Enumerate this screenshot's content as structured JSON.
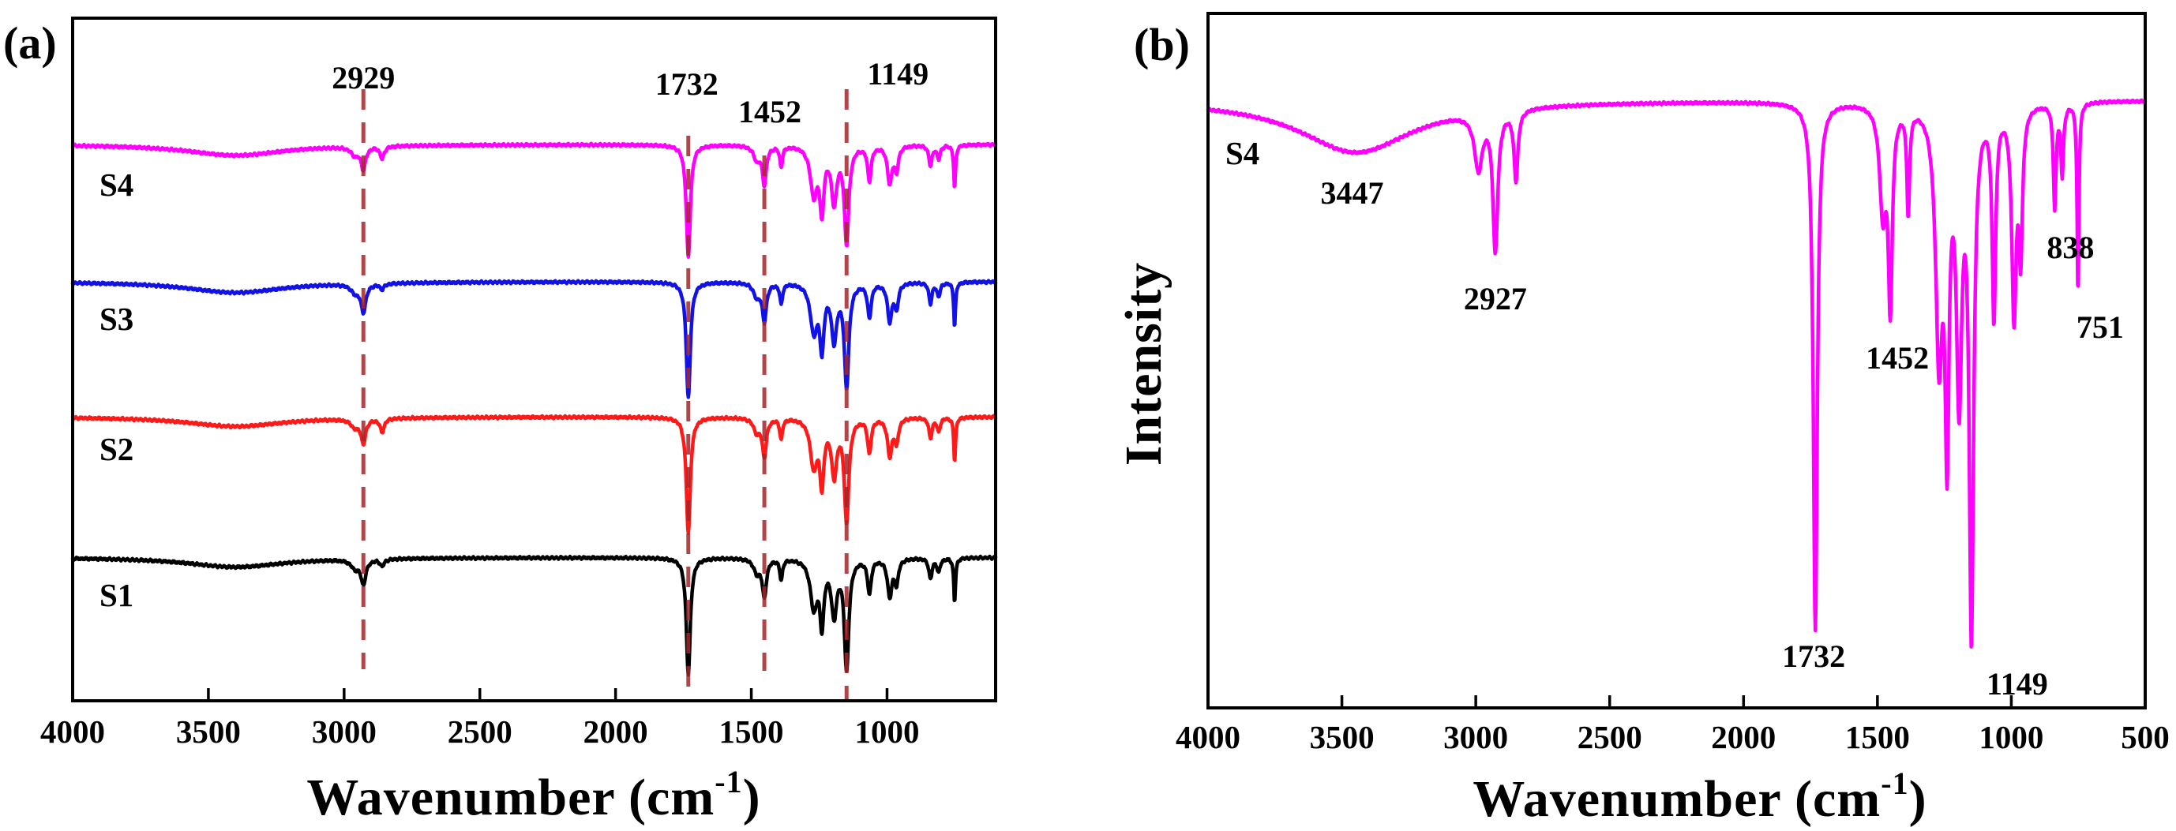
{
  "figure": {
    "panel_labels": [
      "(a)",
      "(b)"
    ]
  },
  "colors": {
    "reference_line": "#a3262a",
    "axis": "#000000"
  },
  "chart_data": [
    {
      "type": "line",
      "panel": "(a)",
      "title": "",
      "xlabel": {
        "text": "Wavenumber (cm",
        "superscript": "-1",
        "suffix": ")"
      },
      "xlim": [
        4000,
        600
      ],
      "x_reversed": true,
      "ylim": [
        0,
        1
      ],
      "y_units": "a.u. (stacked, offset)",
      "grid": false,
      "legend": "inline labels left",
      "xticks": [
        4000,
        3500,
        3000,
        2500,
        2000,
        1500,
        1000
      ],
      "series": [
        {
          "name": "S4",
          "color": "#ff00ff",
          "offset": 0.815,
          "peaks": [
            [
              3400,
              0.016,
              220
            ],
            [
              2960,
              0.012,
              18
            ],
            [
              2929,
              0.032,
              10
            ],
            [
              2860,
              0.018,
              9
            ],
            [
              1732,
              0.165,
              9
            ],
            [
              1480,
              0.02,
              14
            ],
            [
              1452,
              0.055,
              9
            ],
            [
              1390,
              0.03,
              6
            ],
            [
              1270,
              0.07,
              15
            ],
            [
              1240,
              0.09,
              9
            ],
            [
              1195,
              0.08,
              12
            ],
            [
              1149,
              0.14,
              10
            ],
            [
              1065,
              0.05,
              8
            ],
            [
              990,
              0.055,
              10
            ],
            [
              965,
              0.035,
              8
            ],
            [
              840,
              0.03,
              7
            ],
            [
              810,
              0.02,
              7
            ],
            [
              751,
              0.065,
              4
            ]
          ]
        },
        {
          "name": "S3",
          "color": "#1212e6",
          "offset": 0.614,
          "peaks": [
            [
              3400,
              0.016,
              220
            ],
            [
              2960,
              0.012,
              18
            ],
            [
              2929,
              0.04,
              11
            ],
            [
              2860,
              0.008,
              9
            ],
            [
              1732,
              0.17,
              9
            ],
            [
              1480,
              0.02,
              14
            ],
            [
              1452,
              0.055,
              9
            ],
            [
              1390,
              0.03,
              6
            ],
            [
              1270,
              0.07,
              15
            ],
            [
              1240,
              0.09,
              9
            ],
            [
              1195,
              0.08,
              12
            ],
            [
              1149,
              0.15,
              10
            ],
            [
              1065,
              0.05,
              8
            ],
            [
              990,
              0.055,
              10
            ],
            [
              965,
              0.035,
              8
            ],
            [
              840,
              0.03,
              7
            ],
            [
              810,
              0.02,
              7
            ],
            [
              751,
              0.065,
              4
            ]
          ]
        },
        {
          "name": "S2",
          "color": "#ff1a1a",
          "offset": 0.416,
          "peaks": [
            [
              3400,
              0.014,
              220
            ],
            [
              2960,
              0.012,
              18
            ],
            [
              2929,
              0.035,
              10
            ],
            [
              2860,
              0.02,
              9
            ],
            [
              1732,
              0.17,
              9
            ],
            [
              1480,
              0.02,
              14
            ],
            [
              1452,
              0.055,
              9
            ],
            [
              1390,
              0.03,
              6
            ],
            [
              1270,
              0.07,
              15
            ],
            [
              1240,
              0.09,
              9
            ],
            [
              1195,
              0.08,
              12
            ],
            [
              1149,
              0.15,
              10
            ],
            [
              1065,
              0.05,
              8
            ],
            [
              990,
              0.055,
              10
            ],
            [
              965,
              0.035,
              8
            ],
            [
              840,
              0.03,
              7
            ],
            [
              810,
              0.02,
              7
            ],
            [
              751,
              0.065,
              4
            ]
          ]
        },
        {
          "name": "S1",
          "color": "#000000",
          "offset": 0.21,
          "peaks": [
            [
              3400,
              0.014,
              220
            ],
            [
              2960,
              0.012,
              18
            ],
            [
              2929,
              0.035,
              11
            ],
            [
              2860,
              0.01,
              9
            ],
            [
              1732,
              0.17,
              9
            ],
            [
              1480,
              0.02,
              14
            ],
            [
              1452,
              0.055,
              9
            ],
            [
              1390,
              0.03,
              6
            ],
            [
              1270,
              0.07,
              15
            ],
            [
              1240,
              0.09,
              9
            ],
            [
              1195,
              0.08,
              12
            ],
            [
              1149,
              0.16,
              10
            ],
            [
              1065,
              0.05,
              8
            ],
            [
              990,
              0.055,
              10
            ],
            [
              965,
              0.035,
              8
            ],
            [
              840,
              0.03,
              7
            ],
            [
              810,
              0.02,
              7
            ],
            [
              751,
              0.065,
              4
            ]
          ]
        }
      ],
      "reference_lines": [
        {
          "x": 2929,
          "label": "2929"
        },
        {
          "x": 1732,
          "label": "1732"
        },
        {
          "x": 1452,
          "label": "1452"
        },
        {
          "x": 1149,
          "label": "1149"
        }
      ]
    },
    {
      "type": "line",
      "panel": "(b)",
      "title": "",
      "xlabel": {
        "text": "Wavenumber (cm",
        "superscript": "-1",
        "suffix": ")"
      },
      "ylabel": "Intensity",
      "xlim": [
        4000,
        500
      ],
      "x_reversed": true,
      "ylim": [
        0,
        1
      ],
      "grid": false,
      "legend": "inline label left",
      "xticks": [
        4000,
        3500,
        3000,
        2500,
        2000,
        1500,
        1000,
        500
      ],
      "series": [
        {
          "name": "S4",
          "color": "#ff00ff",
          "offset": 0.875,
          "peaks": [
            [
              3447,
              0.075,
              260
            ],
            [
              2990,
              0.08,
              18
            ],
            [
              2927,
              0.2,
              11
            ],
            [
              2850,
              0.1,
              9
            ],
            [
              1732,
              0.76,
              9
            ],
            [
              1480,
              0.15,
              14
            ],
            [
              1452,
              0.28,
              9
            ],
            [
              1385,
              0.15,
              6
            ],
            [
              1270,
              0.35,
              15
            ],
            [
              1240,
              0.45,
              9
            ],
            [
              1195,
              0.4,
              12
            ],
            [
              1149,
              0.75,
              10
            ],
            [
              1065,
              0.3,
              8
            ],
            [
              990,
              0.3,
              10
            ],
            [
              965,
              0.2,
              8
            ],
            [
              838,
              0.15,
              6
            ],
            [
              810,
              0.1,
              6
            ],
            [
              751,
              0.28,
              4
            ]
          ]
        }
      ],
      "annotations": [
        {
          "x": 3447,
          "label": "3447"
        },
        {
          "x": 2927,
          "label": "2927"
        },
        {
          "x": 1732,
          "label": "1732"
        },
        {
          "x": 1452,
          "label": "1452"
        },
        {
          "x": 1149,
          "label": "1149"
        },
        {
          "x": 838,
          "label": "838"
        },
        {
          "x": 751,
          "label": "751"
        }
      ]
    }
  ]
}
